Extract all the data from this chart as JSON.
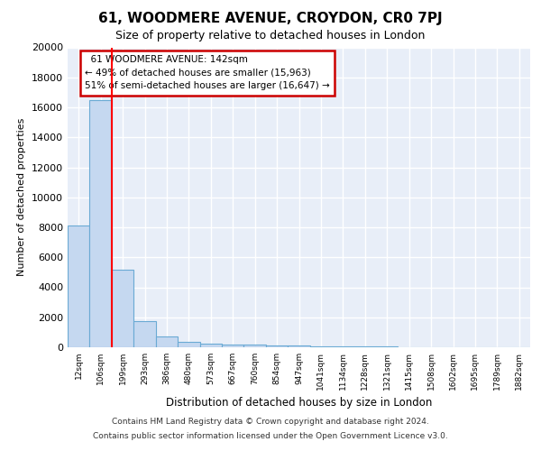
{
  "title": "61, WOODMERE AVENUE, CROYDON, CR0 7PJ",
  "subtitle": "Size of property relative to detached houses in London",
  "xlabel": "Distribution of detached houses by size in London",
  "ylabel": "Number of detached properties",
  "footer_line1": "Contains HM Land Registry data © Crown copyright and database right 2024.",
  "footer_line2": "Contains public sector information licensed under the Open Government Licence v3.0.",
  "bin_labels": [
    "12sqm",
    "106sqm",
    "199sqm",
    "293sqm",
    "386sqm",
    "480sqm",
    "573sqm",
    "667sqm",
    "760sqm",
    "854sqm",
    "947sqm",
    "1041sqm",
    "1134sqm",
    "1228sqm",
    "1321sqm",
    "1415sqm",
    "1508sqm",
    "1602sqm",
    "1695sqm",
    "1789sqm",
    "1882sqm"
  ],
  "bar_values": [
    8100,
    16500,
    5200,
    1750,
    750,
    350,
    250,
    200,
    175,
    150,
    100,
    80,
    60,
    50,
    40,
    30,
    25,
    20,
    15,
    10,
    0
  ],
  "bar_color": "#c5d8f0",
  "bar_edge_color": "#6aaad4",
  "ylim": [
    0,
    20000
  ],
  "yticks": [
    0,
    2000,
    4000,
    6000,
    8000,
    10000,
    12000,
    14000,
    16000,
    18000,
    20000
  ],
  "red_line_x": 1.5,
  "annotation_text": "  61 WOODMERE AVENUE: 142sqm\n← 49% of detached houses are smaller (15,963)\n51% of semi-detached houses are larger (16,647) →",
  "annotation_box_color": "#cc0000",
  "bg_color": "#e8eef8",
  "grid_color": "#ffffff"
}
